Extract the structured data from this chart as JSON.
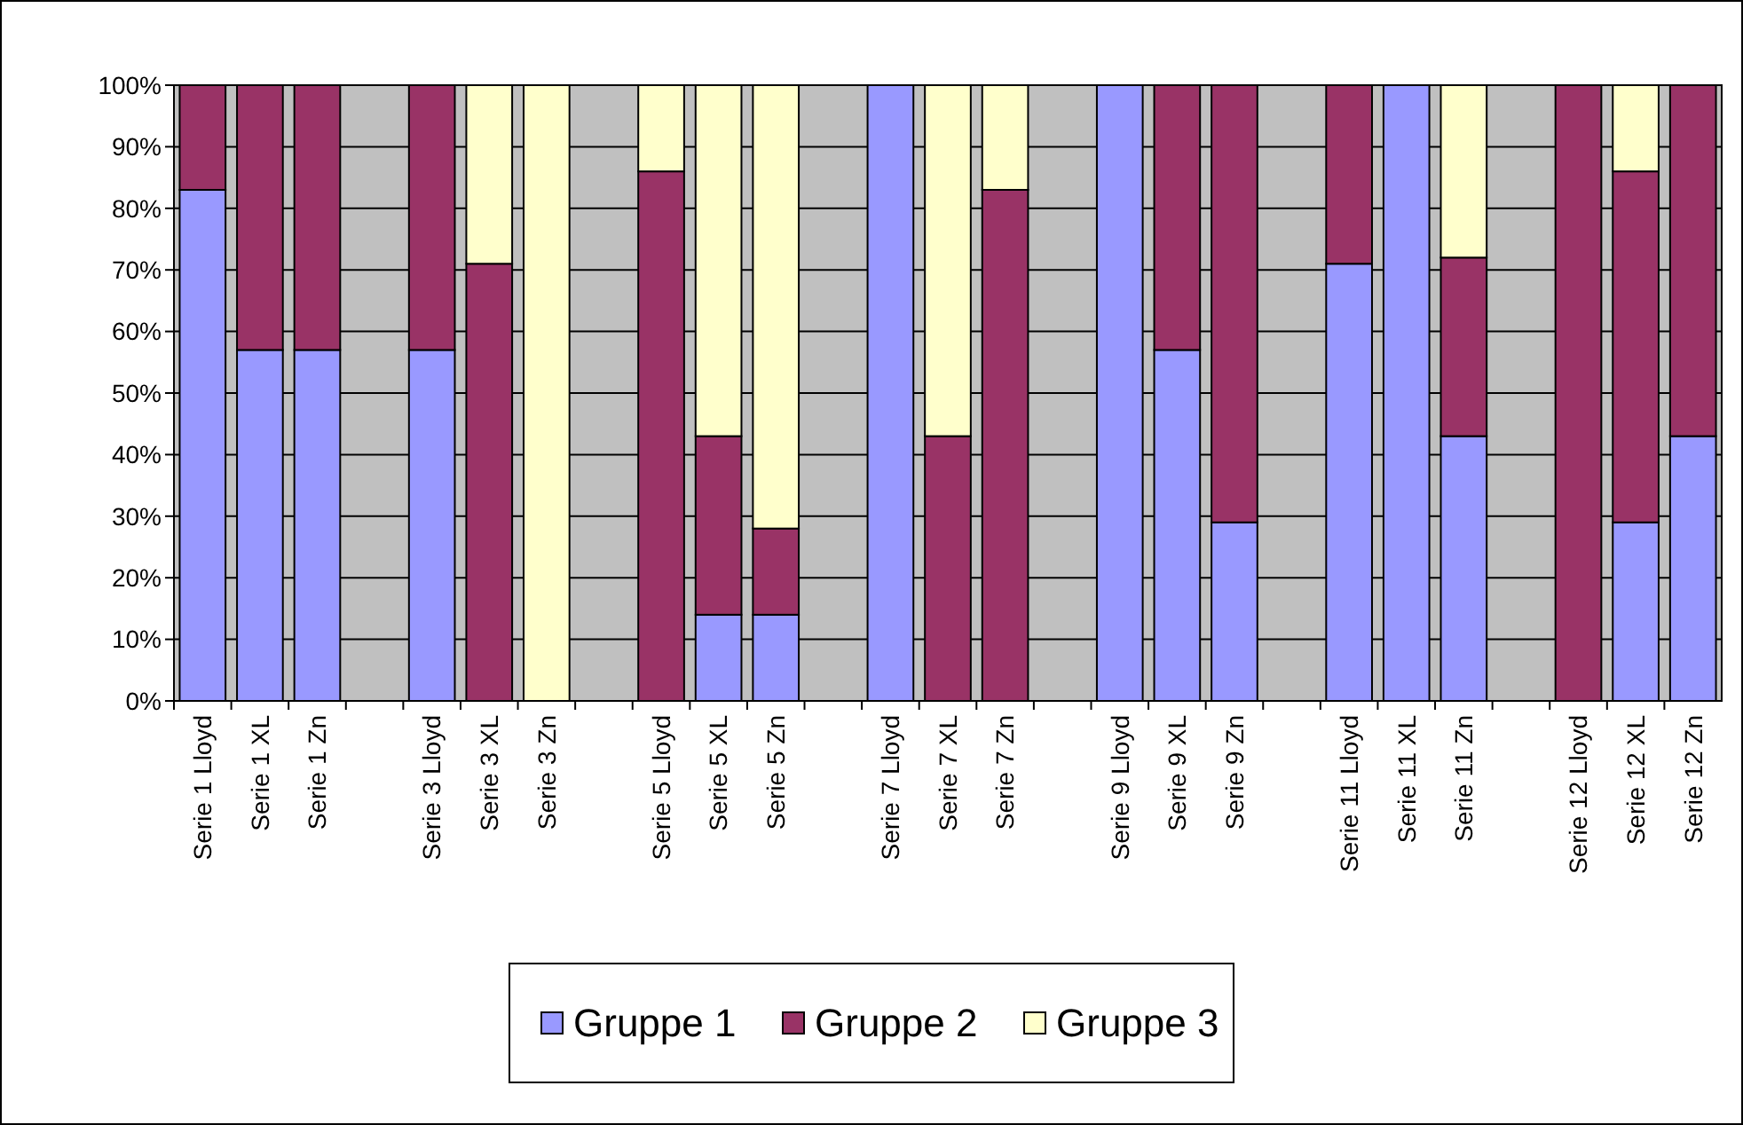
{
  "chart_data": {
    "type": "bar",
    "stacked": true,
    "categories": [
      "Serie 1 Lloyd",
      "Serie 1 XL",
      "Serie 1 Zn",
      null,
      "Serie 3 Lloyd",
      "Serie 3 XL",
      "Serie 3 Zn",
      null,
      "Serie 5 Lloyd",
      "Serie 5 XL",
      "Serie 5 Zn",
      null,
      "Serie 7 Lloyd",
      "Serie 7 XL",
      "Serie 7 Zn",
      null,
      "Serie 9 Lloyd",
      "Serie 9 XL",
      "Serie 9 Zn",
      null,
      "Serie 11 Lloyd",
      "Serie 11 XL",
      "Serie 11 Zn",
      null,
      "Serie 12 Lloyd",
      "Serie 12 XL",
      "Serie 12 Zn"
    ],
    "series": [
      {
        "name": "Gruppe 1",
        "color": "#9999ff",
        "values": [
          83,
          57,
          57,
          null,
          57,
          0,
          0,
          null,
          0,
          14,
          14,
          null,
          100,
          0,
          0,
          null,
          100,
          57,
          29,
          null,
          71,
          100,
          43,
          null,
          0,
          29,
          43
        ]
      },
      {
        "name": "Gruppe 2",
        "color": "#993366",
        "values": [
          17,
          43,
          43,
          null,
          43,
          71,
          0,
          null,
          86,
          29,
          14,
          null,
          0,
          43,
          83,
          null,
          0,
          43,
          71,
          null,
          29,
          0,
          29,
          null,
          100,
          57,
          57
        ]
      },
      {
        "name": "Gruppe 3",
        "color": "#ffffcc",
        "values": [
          0,
          0,
          0,
          null,
          0,
          29,
          100,
          null,
          14,
          57,
          72,
          null,
          0,
          57,
          17,
          null,
          0,
          0,
          0,
          null,
          0,
          0,
          28,
          null,
          0,
          14,
          0
        ]
      }
    ],
    "ylim": [
      0,
      100
    ],
    "yticks": [
      {
        "value": 0,
        "label": "0%"
      },
      {
        "value": 10,
        "label": "10%"
      },
      {
        "value": 20,
        "label": "20%"
      },
      {
        "value": 30,
        "label": "30%"
      },
      {
        "value": 40,
        "label": "40%"
      },
      {
        "value": 50,
        "label": "50%"
      },
      {
        "value": 60,
        "label": "60%"
      },
      {
        "value": 70,
        "label": "70%"
      },
      {
        "value": 80,
        "label": "80%"
      },
      {
        "value": 90,
        "label": "90%"
      },
      {
        "value": 100,
        "label": "100%"
      }
    ],
    "grid": "y",
    "legend": "bottom"
  }
}
